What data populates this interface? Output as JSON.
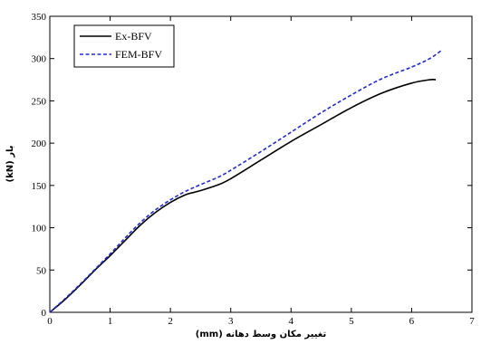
{
  "chart_data": {
    "type": "line",
    "xlabel": "تغییر مکان وسط دهانه (mm)",
    "ylabel": "بار (kN)",
    "xlim": [
      0,
      7
    ],
    "ylim": [
      0,
      350
    ],
    "xticks": [
      "0",
      "1",
      "2",
      "3",
      "4",
      "5",
      "6",
      "7"
    ],
    "yticks": [
      "0",
      "50",
      "100",
      "150",
      "200",
      "250",
      "300",
      "350"
    ],
    "grid": false,
    "legend_position": "top-left",
    "series": [
      {
        "name": "Ex-BFV",
        "color": "#000000",
        "style": "solid",
        "x": [
          0,
          0.25,
          0.5,
          0.75,
          1.0,
          1.25,
          1.5,
          1.75,
          2.0,
          2.25,
          2.4,
          2.55,
          2.8,
          3.0,
          3.5,
          4.0,
          4.5,
          5.0,
          5.5,
          6.0,
          6.3,
          6.4
        ],
        "y": [
          0,
          15,
          32,
          50,
          67,
          85,
          103,
          118,
          130,
          139,
          142,
          145,
          151,
          158,
          180,
          202,
          222,
          242,
          259,
          271,
          275,
          275
        ]
      },
      {
        "name": "FEM-BFV",
        "color": "#1f2bd6",
        "style": "dashed",
        "x": [
          0,
          0.25,
          0.5,
          0.75,
          1.0,
          1.25,
          1.5,
          1.75,
          2.0,
          2.25,
          2.5,
          2.8,
          3.0,
          3.5,
          4.0,
          4.5,
          5.0,
          5.5,
          6.0,
          6.3,
          6.5
        ],
        "y": [
          0,
          16,
          33,
          51,
          69,
          88,
          106,
          121,
          133,
          143,
          151,
          160,
          168,
          190,
          213,
          236,
          257,
          276,
          290,
          300,
          310
        ]
      }
    ]
  }
}
